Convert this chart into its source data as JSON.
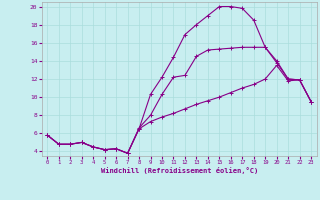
{
  "background_color": "#c8eef0",
  "line_color": "#880088",
  "xlabel": "Windchill (Refroidissement éolien,°C)",
  "xlim": [
    -0.5,
    23.5
  ],
  "ylim": [
    3.5,
    20.5
  ],
  "yticks": [
    4,
    6,
    8,
    10,
    12,
    14,
    16,
    18,
    20
  ],
  "xticks": [
    0,
    1,
    2,
    3,
    4,
    5,
    6,
    7,
    8,
    9,
    10,
    11,
    12,
    13,
    14,
    15,
    16,
    17,
    18,
    19,
    20,
    21,
    22,
    23
  ],
  "grid_color": "#aadddd",
  "line1_x": [
    0,
    1,
    2,
    3,
    4,
    5,
    6,
    7,
    8,
    9,
    10,
    11,
    12,
    13,
    14,
    15,
    16,
    17,
    18,
    19,
    20,
    21,
    22,
    23
  ],
  "line1_y": [
    5.8,
    4.8,
    4.8,
    5.0,
    4.5,
    4.2,
    4.3,
    3.8,
    6.5,
    10.3,
    12.2,
    14.4,
    16.9,
    18.0,
    19.0,
    20.0,
    20.0,
    19.8,
    18.5,
    15.5,
    14.0,
    12.0,
    11.9,
    9.5
  ],
  "line2_x": [
    0,
    1,
    2,
    3,
    4,
    5,
    6,
    7,
    8,
    9,
    10,
    11,
    12,
    13,
    14,
    15,
    16,
    17,
    18,
    19,
    20,
    21,
    22,
    23
  ],
  "line2_y": [
    5.8,
    4.8,
    4.8,
    5.0,
    4.5,
    4.2,
    4.3,
    3.8,
    6.6,
    8.0,
    10.3,
    12.2,
    12.4,
    14.5,
    15.2,
    15.3,
    15.4,
    15.5,
    15.5,
    15.5,
    13.8,
    12.0,
    11.9,
    9.5
  ],
  "line3_x": [
    0,
    1,
    2,
    3,
    4,
    5,
    6,
    7,
    8,
    9,
    10,
    11,
    12,
    13,
    14,
    15,
    16,
    17,
    18,
    19,
    20,
    21,
    22,
    23
  ],
  "line3_y": [
    5.8,
    4.8,
    4.8,
    5.0,
    4.5,
    4.2,
    4.3,
    3.8,
    6.5,
    7.3,
    7.8,
    8.2,
    8.7,
    9.2,
    9.6,
    10.0,
    10.5,
    11.0,
    11.4,
    12.0,
    13.5,
    11.8,
    11.9,
    9.5
  ]
}
